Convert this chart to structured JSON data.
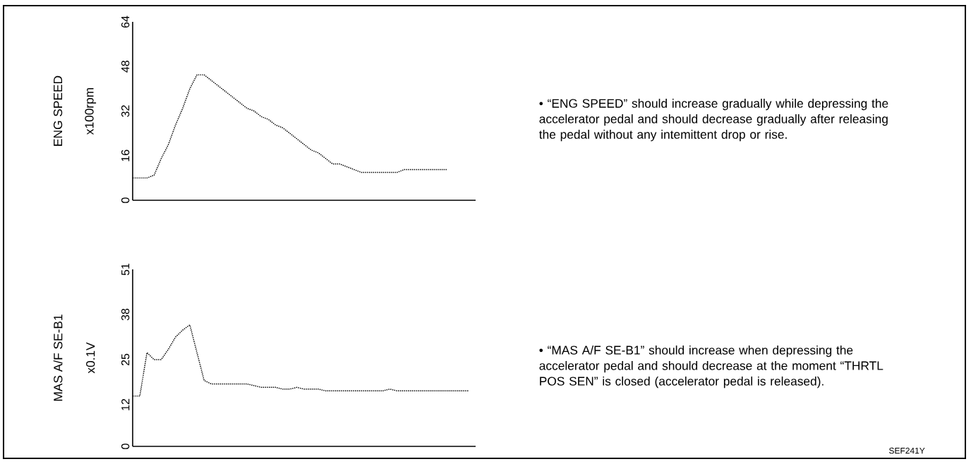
{
  "chart_data": [
    {
      "type": "line",
      "ylabel": "ENG SPEED",
      "annotations": [
        "x100rpm",
        "• “ENG SPEED” should increase gradually while depressing the accelerator pedal and should decrease gradually after releasing the pedal without any intemittent drop or rise."
      ],
      "categories": [
        null,
        null,
        null,
        null,
        null,
        null,
        null,
        null,
        null,
        null,
        null,
        null,
        null,
        null,
        null,
        null,
        null,
        null,
        null,
        null,
        null,
        null,
        null,
        null,
        null,
        null,
        null,
        null,
        null,
        null,
        null,
        null,
        null,
        null,
        null,
        null,
        null,
        null,
        null,
        null,
        null,
        null,
        null,
        null,
        null,
        null,
        null,
        null,
        null
      ],
      "series": [
        {
          "color": "#000000",
          "values": [
            8,
            8,
            8,
            9,
            15,
            20,
            27,
            33,
            40,
            45,
            45,
            43,
            41,
            39,
            37,
            35,
            33,
            32,
            30,
            29,
            27,
            26,
            24,
            22,
            20,
            18,
            17,
            15,
            13,
            13,
            12,
            11,
            10,
            10,
            10,
            10,
            10,
            10,
            11,
            11,
            11,
            11,
            11,
            11,
            11,
            null,
            null,
            null,
            null
          ]
        }
      ],
      "ylim": [
        0,
        64
      ],
      "yticks": [
        0,
        16,
        32,
        48,
        64
      ],
      "tick_labels": "y",
      "marker": "none",
      "line_style": "dotted"
    },
    {
      "type": "line",
      "ylabel": "MAS A/F SE-B1",
      "annotations": [
        "x0.1V",
        "• “MAS A/F SE-B1” should increase when depressing the accelerator pedal and should decrease at the moment “THRTL POS SEN” is closed (accelerator pedal is released).",
        "SEF241Y"
      ],
      "categories": [
        null,
        null,
        null,
        null,
        null,
        null,
        null,
        null,
        null,
        null,
        null,
        null,
        null,
        null,
        null,
        null,
        null,
        null,
        null,
        null,
        null,
        null,
        null,
        null,
        null,
        null,
        null,
        null,
        null,
        null,
        null,
        null,
        null,
        null,
        null,
        null,
        null,
        null,
        null,
        null,
        null,
        null,
        null,
        null,
        null,
        null,
        null,
        null,
        null
      ],
      "series": [
        {
          "color": "#000000",
          "values": [
            14.5,
            14.5,
            27,
            25,
            25,
            28,
            31.5,
            33.5,
            35,
            27,
            19,
            18,
            18,
            18,
            18,
            18,
            18,
            17.5,
            17,
            17,
            17,
            16.5,
            16.5,
            17,
            16.5,
            16.5,
            16.5,
            16,
            16,
            16,
            16,
            16,
            16,
            16,
            16,
            16,
            16.5,
            16,
            16,
            16,
            16,
            16,
            16,
            16,
            16,
            16,
            16,
            16,
            null
          ]
        }
      ],
      "ylim": [
        0,
        51
      ],
      "yticks": [
        0,
        12,
        25,
        38,
        51
      ],
      "tick_labels": "y",
      "marker": "none",
      "line_style": "dotted"
    }
  ]
}
